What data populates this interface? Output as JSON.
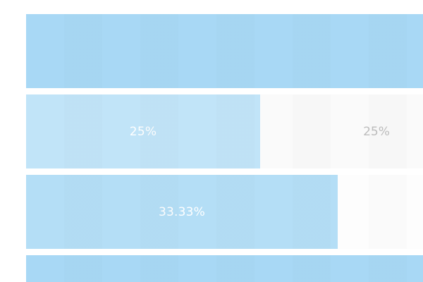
{
  "bars": [
    {
      "value_percent": 100,
      "label": "",
      "color": "#a8d8f5"
    },
    {
      "value_percent": 25,
      "label": "25%",
      "remaining_label": "25%",
      "color": "#c1e4f8"
    },
    {
      "value_percent": 33.33,
      "label": "33.33%",
      "color": "#b4def6"
    },
    {
      "value_percent": 100,
      "label": "",
      "color": "#a8d8f5"
    }
  ],
  "colors": {
    "track": "#fafafa",
    "label_on_fill": "#ffffff",
    "label_on_track": "#bdbdbd"
  }
}
